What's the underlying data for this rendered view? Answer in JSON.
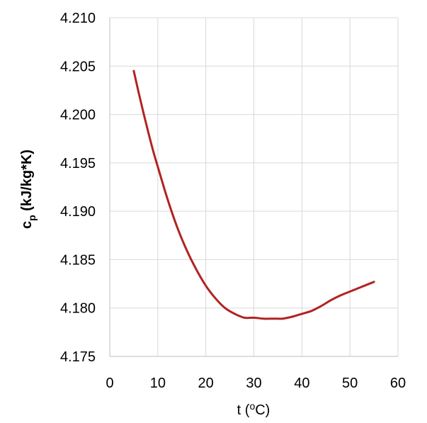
{
  "chart_data": {
    "type": "line",
    "title": "",
    "xlabel": "t (°C)",
    "xlabel_parts": {
      "pre": "t (",
      "sup": "o",
      "post": "C)"
    },
    "ylabel": "c_p (kJ/kg*K)",
    "ylabel_parts": {
      "main": "c",
      "sub": "p",
      "rest": " (kJ/kg*K)"
    },
    "xlim": [
      0,
      60
    ],
    "ylim": [
      4.175,
      4.21
    ],
    "x_ticks": [
      "0",
      "10",
      "20",
      "30",
      "40",
      "50",
      "60"
    ],
    "y_ticks": [
      "4.175",
      "4.180",
      "4.185",
      "4.190",
      "4.195",
      "4.200",
      "4.205",
      "4.210"
    ],
    "grid": true,
    "legend": false,
    "series_color": "#b22222",
    "series": [
      {
        "x": [
          5,
          6,
          7,
          8,
          9,
          10,
          12,
          14,
          16,
          18,
          20,
          22,
          24,
          26,
          28,
          30,
          32,
          34,
          35,
          36,
          38,
          40,
          42,
          44,
          46,
          48,
          50,
          52,
          54,
          55
        ],
        "y": [
          4.2045,
          4.2023,
          4.2002,
          4.1982,
          4.1963,
          4.1946,
          4.1913,
          4.1884,
          4.186,
          4.184,
          4.1823,
          4.181,
          4.18,
          4.1794,
          4.179,
          4.179,
          4.1789,
          4.1789,
          4.1789,
          4.1789,
          4.1791,
          4.1794,
          4.1797,
          4.1802,
          4.1808,
          4.1813,
          4.1817,
          4.1821,
          4.1825,
          4.1827
        ]
      }
    ]
  }
}
